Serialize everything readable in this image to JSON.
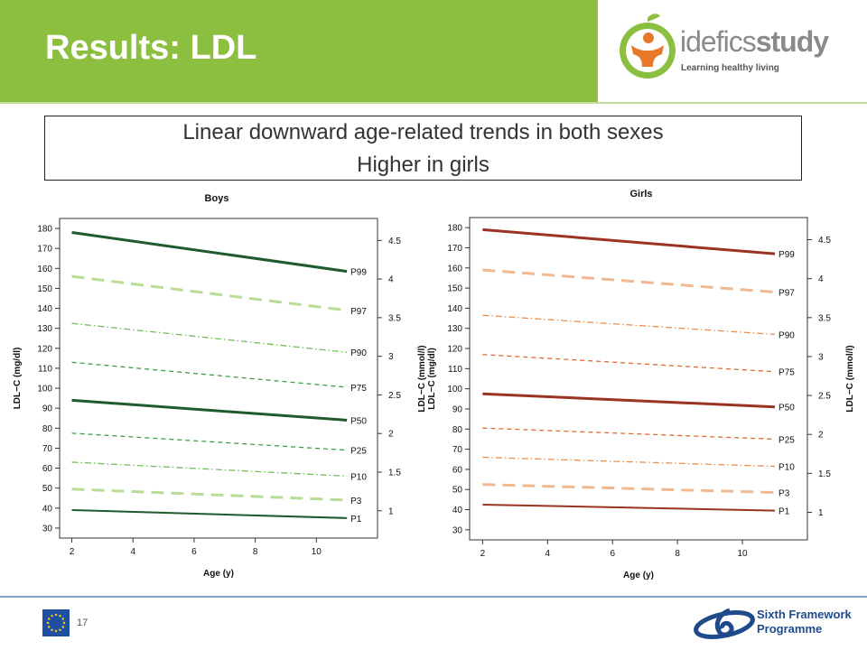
{
  "slide": {
    "title": "Results: LDL",
    "summary_lines": [
      "Linear downward age-related trends in both sexes",
      "Higher in girls"
    ],
    "page_number": "17",
    "colors": {
      "header_green": "#8cbf3f"
    }
  },
  "logo": {
    "word_light": "idefics",
    "word_strong": "study",
    "tagline": "Learning healthy living"
  },
  "footer_logo": {
    "line1": "Sixth Framework",
    "line2": "Programme"
  },
  "chart_data": [
    {
      "type": "line",
      "title": "Boys",
      "xlabel": "Age (y)",
      "ylabel": "LDL−C (mg/dl)",
      "y2label": "",
      "xlim": [
        1.6,
        12.0
      ],
      "ylim": [
        25,
        185
      ],
      "xticks": [
        2,
        4,
        6,
        8,
        10
      ],
      "yticks": [
        30,
        40,
        50,
        60,
        70,
        80,
        90,
        100,
        110,
        120,
        130,
        140,
        150,
        160,
        170,
        180
      ],
      "y2ticks": [
        "1",
        "1.5",
        "2",
        "2.5",
        "3",
        "3.5",
        "4",
        "4.5"
      ],
      "y2ticks_mgdl": [
        38.67,
        58.0,
        77.34,
        96.67,
        116.0,
        135.34,
        154.67,
        174.01
      ],
      "grid": false,
      "series": [
        {
          "name": "P99",
          "x": [
            2,
            11
          ],
          "values": [
            178,
            158.5
          ],
          "color": "#1e5a2e",
          "style": "solid",
          "width": 3
        },
        {
          "name": "P97",
          "x": [
            2,
            11
          ],
          "values": [
            156,
            139
          ],
          "color": "#b9dc96",
          "style": "longdash",
          "width": 3
        },
        {
          "name": "P90",
          "x": [
            2,
            11
          ],
          "values": [
            132.5,
            118
          ],
          "color": "#6fbf5a",
          "style": "dashdot",
          "width": 1.3
        },
        {
          "name": "P75",
          "x": [
            2,
            11
          ],
          "values": [
            113,
            100.5
          ],
          "color": "#3a9e44",
          "style": "dashed",
          "width": 1.3
        },
        {
          "name": "P50",
          "x": [
            2,
            11
          ],
          "values": [
            94,
            84
          ],
          "color": "#1e5a2e",
          "style": "solid",
          "width": 3
        },
        {
          "name": "P25",
          "x": [
            2,
            11
          ],
          "values": [
            77.5,
            69
          ],
          "color": "#3a9e44",
          "style": "dashed",
          "width": 1.3
        },
        {
          "name": "P10",
          "x": [
            2,
            11
          ],
          "values": [
            63,
            56
          ],
          "color": "#6fbf5a",
          "style": "dashdot",
          "width": 1.3
        },
        {
          "name": "P3",
          "x": [
            2,
            11
          ],
          "values": [
            49.5,
            44
          ],
          "color": "#b9dc96",
          "style": "longdash",
          "width": 3
        },
        {
          "name": "P1",
          "x": [
            2,
            11
          ],
          "values": [
            39,
            35
          ],
          "color": "#1e5a2e",
          "style": "solid",
          "width": 2
        }
      ]
    },
    {
      "type": "line",
      "title": "Girls",
      "xlabel": "Age (y)",
      "ylabel": "LDL−C (mmol/l)\nLDL−C (mg/dl)",
      "y2label": "LDL−C (mmol/l)",
      "xlim": [
        1.6,
        12.0
      ],
      "ylim": [
        25,
        185
      ],
      "xticks": [
        2,
        4,
        6,
        8,
        10
      ],
      "yticks": [
        30,
        40,
        50,
        60,
        70,
        80,
        90,
        100,
        110,
        120,
        130,
        140,
        150,
        160,
        170,
        180
      ],
      "y2ticks": [
        "1",
        "1.5",
        "2",
        "2.5",
        "3",
        "3.5",
        "4",
        "4.5"
      ],
      "y2ticks_mgdl": [
        38.67,
        58.0,
        77.34,
        96.67,
        116.0,
        135.34,
        154.67,
        174.01
      ],
      "grid": false,
      "series": [
        {
          "name": "P99",
          "x": [
            2,
            11
          ],
          "values": [
            179,
            167
          ],
          "color": "#9b3322",
          "style": "solid",
          "width": 3
        },
        {
          "name": "P97",
          "x": [
            2,
            11
          ],
          "values": [
            159,
            148
          ],
          "color": "#f2b890",
          "style": "longdash",
          "width": 3
        },
        {
          "name": "P90",
          "x": [
            2,
            11
          ],
          "values": [
            136.5,
            127
          ],
          "color": "#e9904f",
          "style": "dashdot",
          "width": 1.3
        },
        {
          "name": "P75",
          "x": [
            2,
            11
          ],
          "values": [
            117,
            108.5
          ],
          "color": "#e06a30",
          "style": "dashed",
          "width": 1.3
        },
        {
          "name": "P50",
          "x": [
            2,
            11
          ],
          "values": [
            97.5,
            91
          ],
          "color": "#9b3322",
          "style": "solid",
          "width": 3
        },
        {
          "name": "P25",
          "x": [
            2,
            11
          ],
          "values": [
            80.5,
            75
          ],
          "color": "#e06a30",
          "style": "dashed",
          "width": 1.3
        },
        {
          "name": "P10",
          "x": [
            2,
            11
          ],
          "values": [
            66,
            61.5
          ],
          "color": "#e9904f",
          "style": "dashdot",
          "width": 1.3
        },
        {
          "name": "P3",
          "x": [
            2,
            11
          ],
          "values": [
            52.5,
            48.5
          ],
          "color": "#f2b890",
          "style": "longdash",
          "width": 3
        },
        {
          "name": "P1",
          "x": [
            2,
            11
          ],
          "values": [
            42.5,
            39.5
          ],
          "color": "#9b3322",
          "style": "solid",
          "width": 2
        }
      ]
    }
  ]
}
